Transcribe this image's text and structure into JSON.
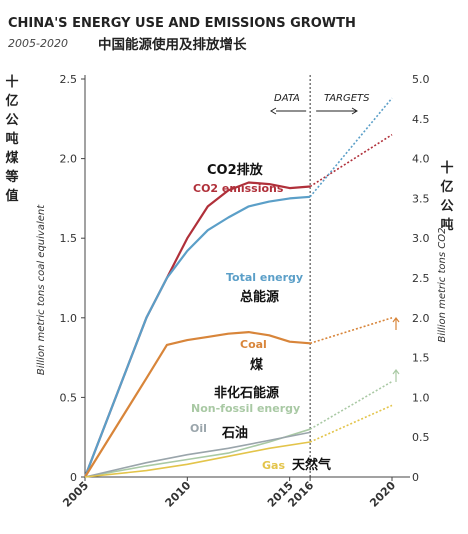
{
  "chart_data": {
    "type": "line",
    "title": "CHINA'S ENERGY USE AND EMISSIONS GROWTH",
    "subtitle": "2005-2020",
    "subtitle_zh": "中国能源使用及排放增长",
    "x_ticks": [
      "2005",
      "2010",
      "2015",
      "2016",
      "2020"
    ],
    "xlim": [
      2005,
      2020
    ],
    "left_axis": {
      "label": "Billion metric tons coal equivalent",
      "label_zh": [
        "十",
        "亿",
        "公",
        "吨",
        "煤",
        "等",
        "值"
      ],
      "range": [
        0,
        2.5
      ],
      "ticks": [
        "0",
        "0.5",
        "1.0",
        "1.5",
        "2.0",
        "2.5"
      ]
    },
    "right_axis": {
      "label": "Billion metric tons CO2",
      "label_zh": [
        "十",
        "亿",
        "公",
        "吨"
      ],
      "range": [
        0,
        5.0
      ],
      "ticks": [
        "0",
        "0.5",
        "1.0",
        "1.5",
        "2.0",
        "2.5",
        "3.0",
        "3.5",
        "4.0",
        "4.5",
        "5.0"
      ]
    },
    "zones": {
      "data": "DATA",
      "targets": "TARGETS",
      "boundary": 2016
    },
    "series": [
      {
        "name": "CO2 emissions",
        "name_zh": "CO2排放",
        "axis": "right",
        "color": "#b0303a",
        "x": [
          2005,
          2008,
          2009,
          2010,
          2011,
          2012,
          2013,
          2014,
          2015,
          2016
        ],
        "values": [
          0,
          2.0,
          2.5,
          3.0,
          3.4,
          3.6,
          3.7,
          3.68,
          3.63,
          3.65
        ],
        "target": {
          "x": [
            2016,
            2020
          ],
          "values": [
            3.65,
            4.3
          ]
        }
      },
      {
        "name": "Total energy",
        "name_zh": "总能源",
        "axis": "left",
        "color": "#5b9fc8",
        "x": [
          2005,
          2008,
          2009,
          2010,
          2011,
          2012,
          2013,
          2014,
          2015,
          2016
        ],
        "values": [
          0,
          1.0,
          1.25,
          1.42,
          1.55,
          1.63,
          1.7,
          1.73,
          1.75,
          1.76
        ],
        "target": {
          "x": [
            2016,
            2020
          ],
          "values": [
            1.76,
            2.38
          ]
        }
      },
      {
        "name": "Coal",
        "name_zh": "煤",
        "axis": "left",
        "color": "#d8853a",
        "x": [
          2005,
          2008,
          2009,
          2010,
          2011,
          2012,
          2013,
          2014,
          2015,
          2016
        ],
        "values": [
          0,
          0.62,
          0.83,
          0.86,
          0.88,
          0.9,
          0.91,
          0.89,
          0.85,
          0.84
        ],
        "target": {
          "x": [
            2016,
            2020
          ],
          "values": [
            0.84,
            1.0
          ]
        }
      },
      {
        "name": "Non-fossil energy",
        "name_zh": "非化石能源",
        "axis": "left",
        "color": "#a9c9a4",
        "x": [
          2005,
          2008,
          2010,
          2012,
          2014,
          2016
        ],
        "values": [
          0,
          0.07,
          0.11,
          0.15,
          0.22,
          0.3
        ],
        "target": {
          "x": [
            2016,
            2020
          ],
          "values": [
            0.3,
            0.6
          ]
        }
      },
      {
        "name": "Oil",
        "name_zh": "石油",
        "axis": "left",
        "color": "#9aa5ab",
        "x": [
          2005,
          2008,
          2010,
          2012,
          2014,
          2016
        ],
        "values": [
          0,
          0.09,
          0.14,
          0.18,
          0.23,
          0.28
        ],
        "target": null
      },
      {
        "name": "Gas",
        "name_zh": "天然气",
        "axis": "left",
        "color": "#e3c44a",
        "x": [
          2005,
          2008,
          2010,
          2012,
          2014,
          2016
        ],
        "values": [
          0,
          0.04,
          0.08,
          0.13,
          0.18,
          0.22
        ],
        "target": {
          "x": [
            2016,
            2020
          ],
          "values": [
            0.22,
            0.45
          ]
        }
      }
    ]
  }
}
